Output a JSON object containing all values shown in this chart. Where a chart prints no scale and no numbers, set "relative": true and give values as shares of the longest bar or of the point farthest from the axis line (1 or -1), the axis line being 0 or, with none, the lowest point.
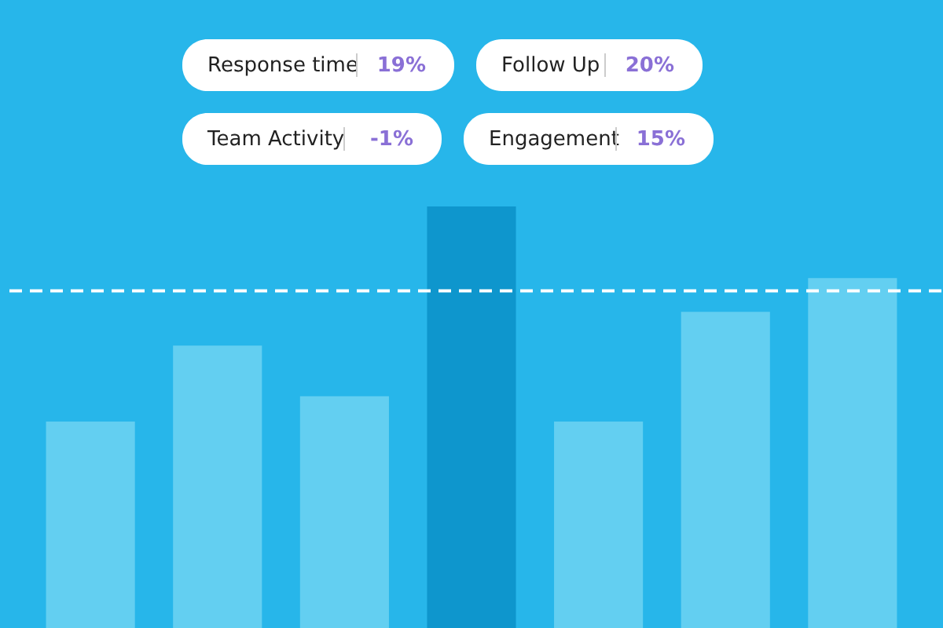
{
  "chart_data": {
    "type": "bar",
    "relative": true,
    "categories": [
      null,
      null,
      null,
      null,
      null,
      null,
      null
    ],
    "values": [
      0.49,
      0.67,
      0.55,
      1,
      0.49,
      0.75,
      0.83
    ],
    "colors": [
      "#6fd3f2",
      "#6fd3f2",
      "#6fd3f2",
      "#0a90c8",
      "#6fd3f2",
      "#6fd3f2",
      "#6fd3f2"
    ],
    "ref_lines": [
      {
        "axis": "y",
        "value": 0.8,
        "color": "#ffffff",
        "line_style": "dashed"
      }
    ],
    "annotations": [
      "Response time",
      "19%",
      "Follow Up",
      "20%",
      "Team Activity",
      "-1%",
      "Engagement",
      "15%"
    ]
  }
}
